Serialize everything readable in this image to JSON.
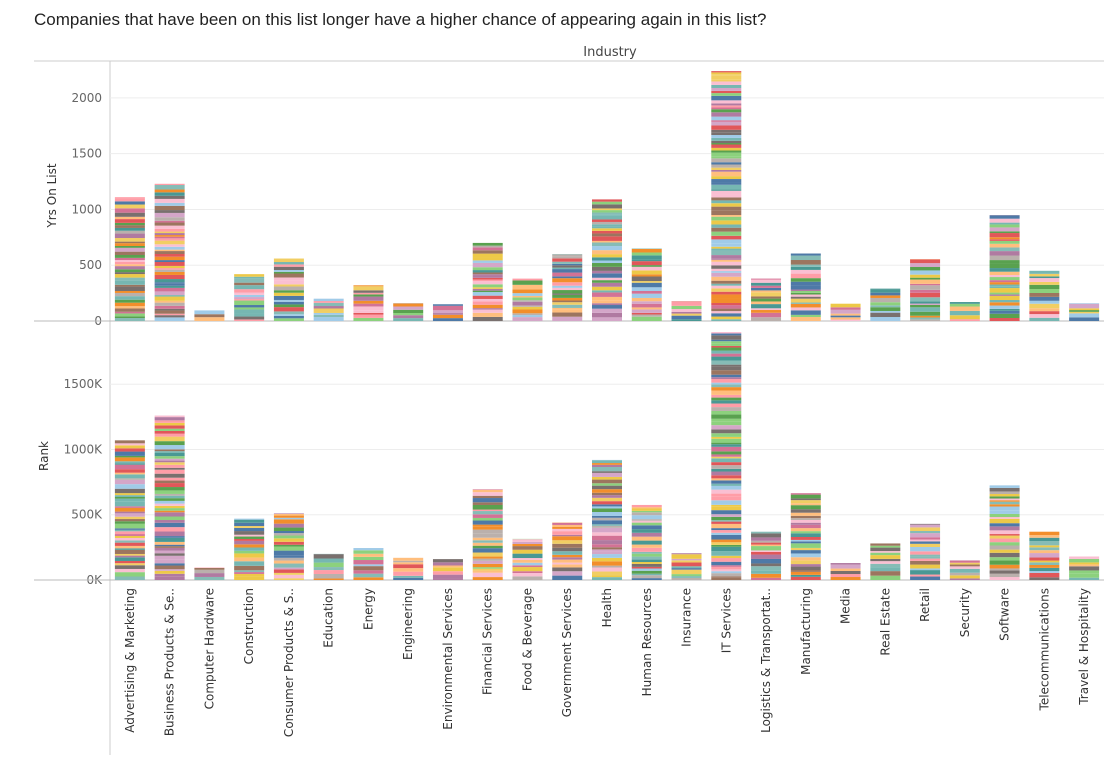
{
  "chart_data": {
    "type": "bar",
    "title": "Companies that have been on this list longer have a higher chance of appearing again in this list?",
    "column_header": "Industry",
    "stacked": true,
    "categories": [
      "Advertising & Marketing",
      "Business Products & Se..",
      "Computer Hardware",
      "Construction",
      "Consumer Products & S..",
      "Education",
      "Energy",
      "Engineering",
      "Environmental Services",
      "Financial Services",
      "Food & Beverage",
      "Government Services",
      "Health",
      "Human Resources",
      "Insurance",
      "IT Services",
      "Logistics & Transportat..",
      "Manufacturing",
      "Media",
      "Real Estate",
      "Retail",
      "Security",
      "Software",
      "Telecommunications",
      "Travel & Hospitality"
    ],
    "panels": [
      {
        "ylabel": "Yrs On List",
        "ylim": [
          0,
          2250
        ],
        "yticks": [
          0,
          500,
          1000,
          1500,
          2000
        ],
        "tick_labels": [
          "0",
          "500",
          "1000",
          "1500",
          "2000"
        ],
        "values": [
          1110,
          1230,
          95,
          420,
          560,
          200,
          320,
          160,
          150,
          700,
          380,
          600,
          1090,
          650,
          175,
          2240,
          380,
          605,
          155,
          290,
          555,
          170,
          950,
          450,
          160
        ]
      },
      {
        "ylabel": "Rank",
        "ylim": [
          0,
          1900000
        ],
        "yticks": [
          0,
          500000,
          1000000,
          1500000
        ],
        "tick_labels": [
          "0K",
          "500K",
          "1000K",
          "1500K"
        ],
        "values": [
          1070000,
          1260000,
          95000,
          470000,
          510000,
          200000,
          245000,
          170000,
          160000,
          695000,
          315000,
          440000,
          920000,
          575000,
          205000,
          1900000,
          370000,
          665000,
          130000,
          280000,
          430000,
          150000,
          725000,
          370000,
          180000
        ]
      }
    ],
    "grid": true
  }
}
